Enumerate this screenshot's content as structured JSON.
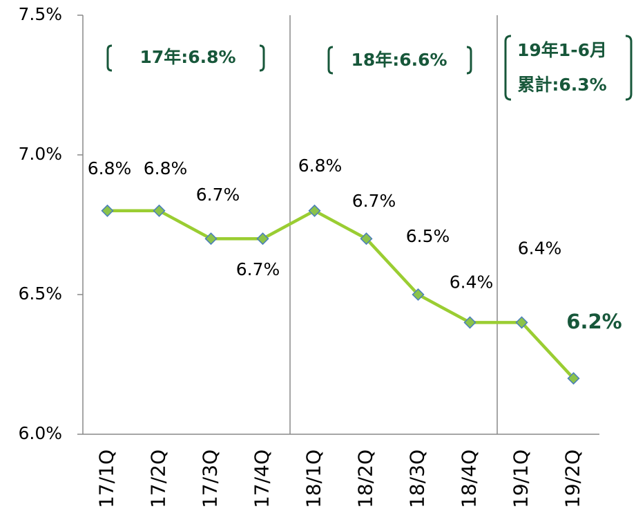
{
  "chart_data": {
    "type": "line",
    "categories": [
      "17/1Q",
      "17/2Q",
      "17/3Q",
      "17/4Q",
      "18/1Q",
      "18/2Q",
      "18/3Q",
      "18/4Q",
      "19/1Q",
      "19/2Q"
    ],
    "values": [
      6.8,
      6.8,
      6.7,
      6.7,
      6.8,
      6.7,
      6.5,
      6.4,
      6.4,
      6.2
    ],
    "value_labels": [
      "6.8%",
      "6.8%",
      "6.7%",
      "6.7%",
      "6.8%",
      "6.7%",
      "6.5%",
      "6.4%",
      "6.4%",
      "6.2%"
    ],
    "color": "#9acd32",
    "marker_color": "#8bc34a",
    "ylim": [
      6.0,
      7.5
    ],
    "yticks": [
      {
        "value": 6.0,
        "label": "6.0%"
      },
      {
        "value": 6.5,
        "label": "6.5%"
      },
      {
        "value": 7.0,
        "label": "7.0%"
      },
      {
        "value": 7.5,
        "label": "7.5%"
      }
    ],
    "annotations": [
      "17年:6.8%",
      "18年:6.6%",
      "19年1-6月",
      "累計:6.3%"
    ]
  }
}
